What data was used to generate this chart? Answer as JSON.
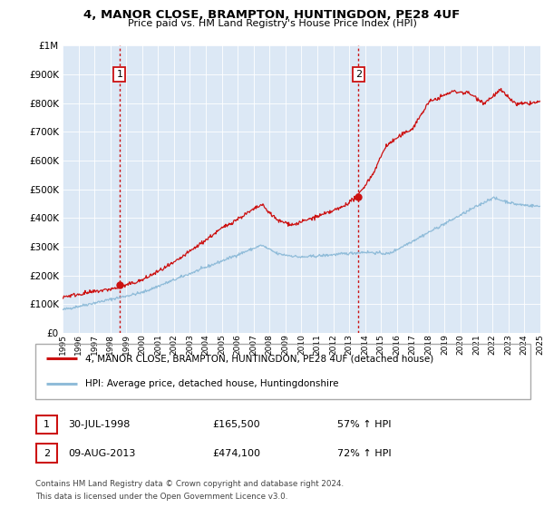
{
  "title": "4, MANOR CLOSE, BRAMPTON, HUNTINGDON, PE28 4UF",
  "subtitle": "Price paid vs. HM Land Registry's House Price Index (HPI)",
  "bg_color": "#dce8f5",
  "hpi_color": "#90bcd9",
  "price_color": "#cc1111",
  "marker1_x": 1998.58,
  "marker1_price": 165500,
  "marker2_x": 2013.58,
  "marker2_price": 474100,
  "marker1_label": "1",
  "marker2_label": "2",
  "marker1_date_str": "30-JUL-1998",
  "marker1_price_str": "£165,500",
  "marker1_hpi_str": "57% ↑ HPI",
  "marker2_date_str": "09-AUG-2013",
  "marker2_price_str": "£474,100",
  "marker2_hpi_str": "72% ↑ HPI",
  "legend_label1": "4, MANOR CLOSE, BRAMPTON, HUNTINGDON, PE28 4UF (detached house)",
  "legend_label2": "HPI: Average price, detached house, Huntingdonshire",
  "footer1": "Contains HM Land Registry data © Crown copyright and database right 2024.",
  "footer2": "This data is licensed under the Open Government Licence v3.0.",
  "ylim_max": 1000000,
  "xmin": 1995,
  "xmax": 2025
}
